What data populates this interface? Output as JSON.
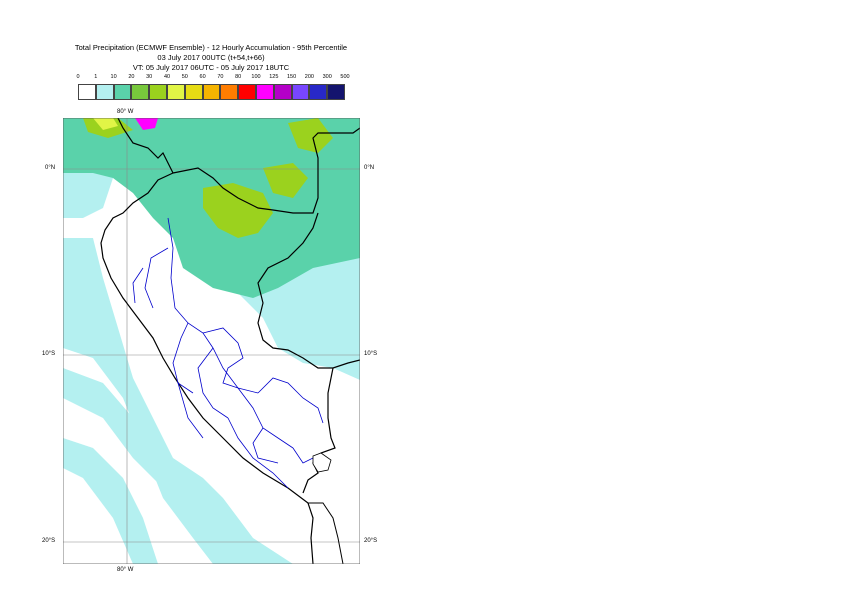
{
  "title": {
    "line1": "Total Precipitation (ECMWF Ensemble) - 12 Hourly Accumulation - 95th Percentile",
    "line2": "03 July 2017 00UTC (t+54,t+66)",
    "line3": "VT: 05 July 2017 06UTC - 05 July 2017 18UTC"
  },
  "legend": {
    "labels": [
      "0",
      "1",
      "10",
      "20",
      "30",
      "40",
      "50",
      "60",
      "70",
      "80",
      "100",
      "125",
      "150",
      "200",
      "300",
      "500"
    ],
    "colors": [
      "#ffffff",
      "#b4f0f0",
      "#5ad2aa",
      "#78c83c",
      "#9bd21e",
      "#e1f546",
      "#e6dc14",
      "#f5b400",
      "#ff7d00",
      "#ff0000",
      "#ff00ff",
      "#b400c8",
      "#7846ff",
      "#2828c8",
      "#14146e"
    ]
  },
  "axes": {
    "top_lon": "80° W",
    "bottom_lon": "80° W",
    "lat_0_left": "0°N",
    "lat_0_right": "0°N",
    "lat_10_left": "10°S",
    "lat_10_right": "10°S",
    "lat_20_left": "20°S",
    "lat_20_right": "20°S"
  },
  "map": {
    "region": "Peru",
    "colors": {
      "land_white": "#ffffff",
      "light_cyan": "#b4f0f0",
      "green_teal": "#5ad2aa",
      "yellow_green": "#9bd21e",
      "lime": "#e1f546",
      "magenta": "#ff00ff",
      "border_black": "#000000",
      "dept_blue": "#0000cc",
      "grid": "#8a8a8a"
    }
  }
}
